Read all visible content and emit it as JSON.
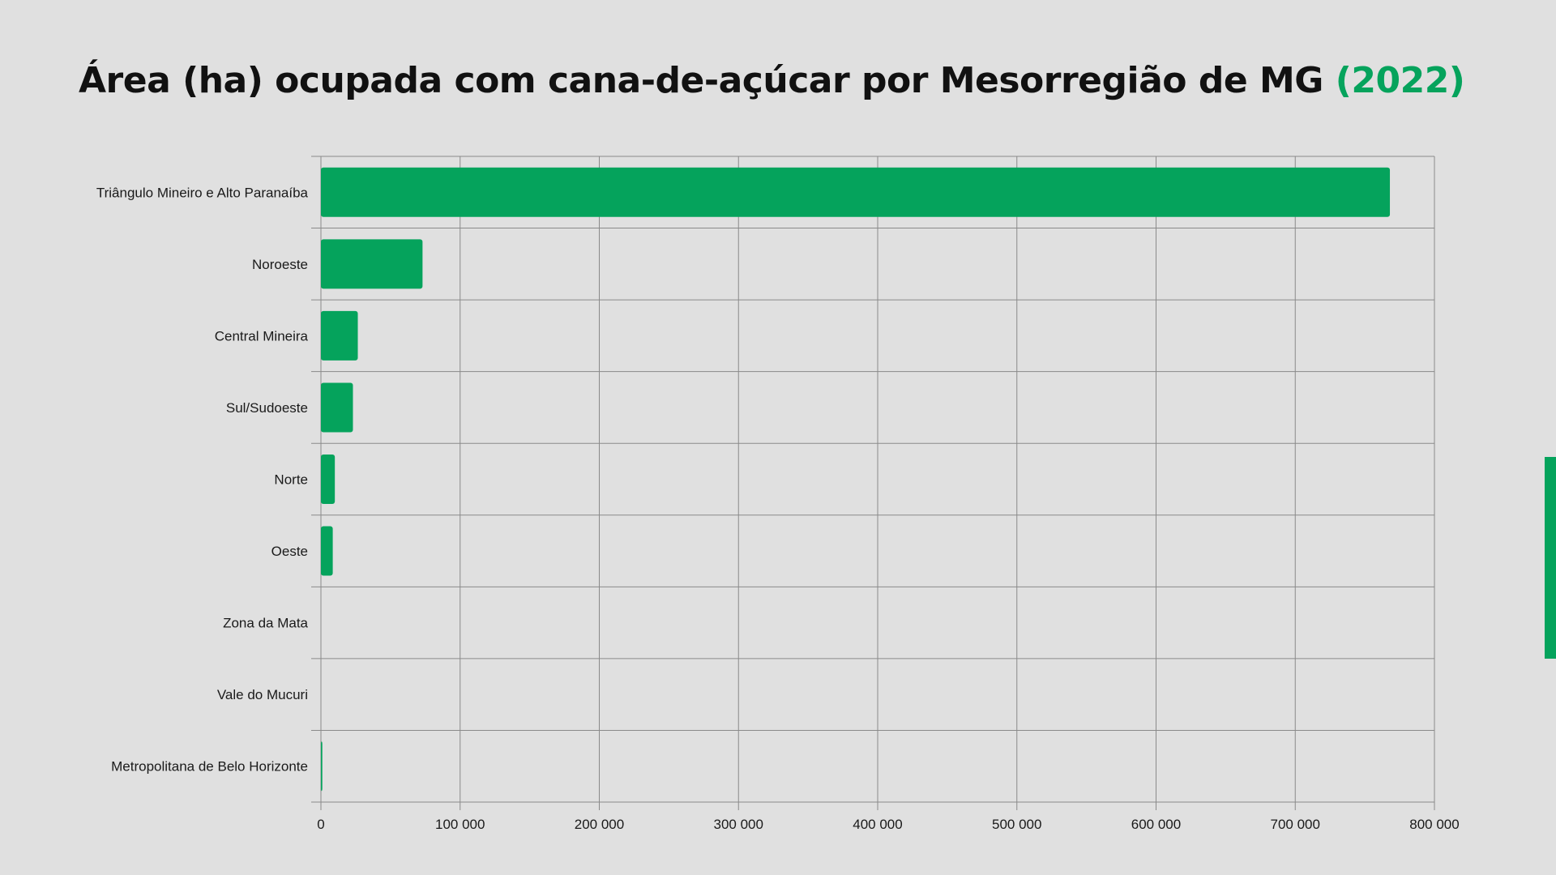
{
  "title": {
    "main": "Área (ha) ocupada com cana-de-açúcar por Mesorregião de MG",
    "year": "(2022)"
  },
  "colors": {
    "bar": "#05a35c",
    "grid": "#8a8a8a",
    "title_accent": "#05a35c",
    "scroll_indicator": "#05a35c"
  },
  "chart_data": {
    "type": "bar",
    "orientation": "horizontal",
    "title": "Área (ha) ocupada com cana-de-açúcar por Mesorregião de MG (2022)",
    "categories": [
      "Triângulo Mineiro e Alto Paranaíba",
      "Noroeste",
      "Central Mineira",
      "Sul/Sudoeste",
      "Norte",
      "Oeste",
      "Zona da Mata",
      "Vale do Mucuri",
      "Metropolitana de Belo Horizonte"
    ],
    "values": [
      768000,
      73000,
      26500,
      23000,
      10000,
      8500,
      0,
      0,
      1000
    ],
    "xlim": [
      0,
      800000
    ],
    "xticks": [
      0,
      100000,
      200000,
      300000,
      400000,
      500000,
      600000,
      700000,
      800000
    ],
    "xtick_labels": [
      "0",
      "100 000",
      "200 000",
      "300 000",
      "400 000",
      "500 000",
      "600 000",
      "700 000",
      "800 000"
    ],
    "grid": true,
    "legend": "none"
  }
}
